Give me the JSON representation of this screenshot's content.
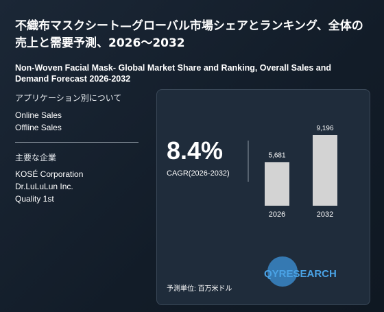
{
  "title": "不織布マスクシート—グローバル市場シェアとランキング、全体の売上と需要予測、2026～2032",
  "subtitle": "Non-Woven Facial Mask- Global Market Share and Ranking, Overall Sales and Demand Forecast 2026-2032",
  "applications": {
    "heading": "アプリケーション別について",
    "items": [
      "Online Sales",
      "Offline Sales"
    ]
  },
  "companies": {
    "heading": "主要な企業",
    "items": [
      "KOSÉ Corporation",
      "Dr.LuLuLun Inc.",
      "Quality 1st"
    ]
  },
  "cagr": {
    "value": "8.4%",
    "label": "CAGR(2026-2032)"
  },
  "chart_data": {
    "type": "bar",
    "categories": [
      "2026",
      "2032"
    ],
    "values": [
      5681,
      9196
    ],
    "value_labels": [
      "5,681",
      "9,196"
    ],
    "color": "#d3d3d3"
  },
  "unit_note": "予測単位: 百万米ドル",
  "logo": "QYRESEARCH"
}
